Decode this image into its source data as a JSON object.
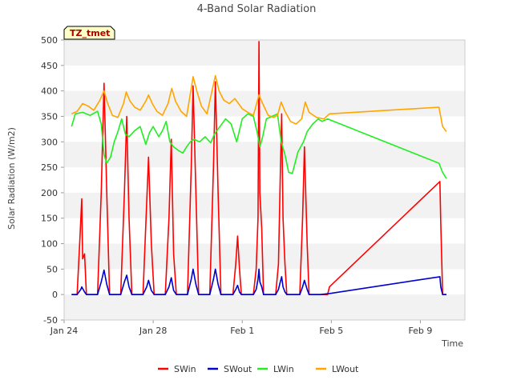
{
  "chart_data": {
    "type": "line",
    "title": "4-Band Solar Radiation",
    "xlabel": "Time",
    "ylabel": "Solar Radiation (W/m2)",
    "badge": "TZ_tmet",
    "ylim": [
      -50,
      500
    ],
    "yticks": [
      -50,
      0,
      50,
      100,
      150,
      200,
      250,
      300,
      350,
      400,
      450,
      500
    ],
    "xlim": [
      "2025-01-24",
      "2025-02-11"
    ],
    "xticks": [
      {
        "value": "2025-01-24",
        "label": "Jan 24"
      },
      {
        "value": "2025-01-28",
        "label": "Jan 28"
      },
      {
        "value": "2025-02-01",
        "label": "Feb 1"
      },
      {
        "value": "2025-02-05",
        "label": "Feb 5"
      },
      {
        "value": "2025-02-09",
        "label": "Feb 9"
      }
    ],
    "grid": "horizontal bands",
    "legend_position": "bottom",
    "series": [
      {
        "name": "SWin",
        "color": "#ff0000",
        "points": [
          [
            "2025-01-24T08:00",
            0
          ],
          [
            "2025-01-24T14:00",
            0
          ],
          [
            "2025-01-24T17:00",
            110
          ],
          [
            "2025-01-24T19:00",
            188
          ],
          [
            "2025-01-24T20:00",
            70
          ],
          [
            "2025-01-24T22:00",
            80
          ],
          [
            "2025-01-25T00:00",
            0
          ],
          [
            "2025-01-25T12:00",
            0
          ],
          [
            "2025-01-25T16:00",
            200
          ],
          [
            "2025-01-25T19:00",
            415
          ],
          [
            "2025-01-25T22:00",
            200
          ],
          [
            "2025-01-26T01:00",
            0
          ],
          [
            "2025-01-26T13:00",
            0
          ],
          [
            "2025-01-26T17:00",
            200
          ],
          [
            "2025-01-26T19:30",
            350
          ],
          [
            "2025-01-26T22:00",
            150
          ],
          [
            "2025-01-27T01:00",
            0
          ],
          [
            "2025-01-27T13:00",
            0
          ],
          [
            "2025-01-27T17:00",
            180
          ],
          [
            "2025-01-27T19:00",
            270
          ],
          [
            "2025-01-27T22:00",
            100
          ],
          [
            "2025-01-28T01:00",
            0
          ],
          [
            "2025-01-28T13:00",
            0
          ],
          [
            "2025-01-28T17:00",
            150
          ],
          [
            "2025-01-28T19:30",
            305
          ],
          [
            "2025-01-28T22:00",
            80
          ],
          [
            "2025-01-29T01:00",
            0
          ],
          [
            "2025-01-29T13:00",
            0
          ],
          [
            "2025-01-29T17:00",
            250
          ],
          [
            "2025-01-29T19:00",
            410
          ],
          [
            "2025-01-29T22:00",
            200
          ],
          [
            "2025-01-30T01:00",
            0
          ],
          [
            "2025-01-30T13:00",
            0
          ],
          [
            "2025-01-30T17:00",
            250
          ],
          [
            "2025-01-30T19:00",
            418
          ],
          [
            "2025-01-30T22:00",
            200
          ],
          [
            "2025-01-31T01:00",
            0
          ],
          [
            "2025-01-31T14:00",
            0
          ],
          [
            "2025-01-31T17:00",
            60
          ],
          [
            "2025-01-31T19:00",
            115
          ],
          [
            "2025-01-31T21:00",
            50
          ],
          [
            "2025-01-31T23:00",
            0
          ],
          [
            "2025-02-01T12:00",
            0
          ],
          [
            "2025-02-01T15:00",
            50
          ],
          [
            "2025-02-01T17:00",
            150
          ],
          [
            "2025-02-01T18:00",
            497
          ],
          [
            "2025-02-01T19:00",
            200
          ],
          [
            "2025-02-01T21:00",
            130
          ],
          [
            "2025-02-01T23:00",
            0
          ],
          [
            "2025-02-02T12:00",
            0
          ],
          [
            "2025-02-02T15:00",
            60
          ],
          [
            "2025-02-02T17:00",
            235
          ],
          [
            "2025-02-02T18:30",
            355
          ],
          [
            "2025-02-02T20:00",
            150
          ],
          [
            "2025-02-02T22:00",
            60
          ],
          [
            "2025-02-03T00:00",
            0
          ],
          [
            "2025-02-03T14:00",
            0
          ],
          [
            "2025-02-03T17:00",
            150
          ],
          [
            "2025-02-03T19:00",
            290
          ],
          [
            "2025-02-03T22:00",
            100
          ],
          [
            "2025-02-04T00:00",
            0
          ],
          [
            "2025-02-04T12:00",
            0
          ],
          [
            "2025-02-04T20:00",
            0
          ],
          [
            "2025-02-04T22:00",
            15
          ],
          [
            "2025-02-09T21:00",
            222
          ],
          [
            "2025-02-09T22:00",
            140
          ],
          [
            "2025-02-10T00:00",
            0
          ],
          [
            "2025-02-10T04:00",
            0
          ]
        ]
      },
      {
        "name": "SWout",
        "color": "#0000cc",
        "points": [
          [
            "2025-01-24T08:00",
            0
          ],
          [
            "2025-01-24T14:00",
            0
          ],
          [
            "2025-01-24T18:00",
            10
          ],
          [
            "2025-01-24T19:00",
            15
          ],
          [
            "2025-01-24T22:00",
            5
          ],
          [
            "2025-01-25T00:00",
            0
          ],
          [
            "2025-01-25T12:00",
            0
          ],
          [
            "2025-01-25T16:00",
            25
          ],
          [
            "2025-01-25T19:00",
            48
          ],
          [
            "2025-01-25T22:00",
            20
          ],
          [
            "2025-01-26T01:00",
            0
          ],
          [
            "2025-01-26T13:00",
            0
          ],
          [
            "2025-01-26T17:00",
            25
          ],
          [
            "2025-01-26T19:30",
            38
          ],
          [
            "2025-01-26T22:00",
            15
          ],
          [
            "2025-01-27T01:00",
            0
          ],
          [
            "2025-01-27T13:00",
            0
          ],
          [
            "2025-01-27T17:00",
            15
          ],
          [
            "2025-01-27T19:00",
            28
          ],
          [
            "2025-01-27T22:00",
            8
          ],
          [
            "2025-01-28T01:00",
            0
          ],
          [
            "2025-01-28T13:00",
            0
          ],
          [
            "2025-01-28T17:00",
            15
          ],
          [
            "2025-01-28T19:30",
            33
          ],
          [
            "2025-01-28T22:00",
            8
          ],
          [
            "2025-01-29T01:00",
            0
          ],
          [
            "2025-01-29T13:00",
            0
          ],
          [
            "2025-01-29T17:00",
            30
          ],
          [
            "2025-01-29T19:00",
            50
          ],
          [
            "2025-01-29T22:00",
            20
          ],
          [
            "2025-01-30T01:00",
            0
          ],
          [
            "2025-01-30T13:00",
            0
          ],
          [
            "2025-01-30T17:00",
            30
          ],
          [
            "2025-01-30T19:00",
            50
          ],
          [
            "2025-01-30T22:00",
            20
          ],
          [
            "2025-01-31T01:00",
            0
          ],
          [
            "2025-01-31T14:00",
            0
          ],
          [
            "2025-01-31T17:00",
            10
          ],
          [
            "2025-01-31T19:00",
            18
          ],
          [
            "2025-01-31T21:00",
            5
          ],
          [
            "2025-01-31T23:00",
            0
          ],
          [
            "2025-02-01T12:00",
            0
          ],
          [
            "2025-02-01T15:00",
            10
          ],
          [
            "2025-02-01T17:00",
            30
          ],
          [
            "2025-02-01T18:00",
            50
          ],
          [
            "2025-02-01T19:00",
            25
          ],
          [
            "2025-02-01T21:00",
            15
          ],
          [
            "2025-02-01T23:00",
            0
          ],
          [
            "2025-02-02T12:00",
            0
          ],
          [
            "2025-02-02T15:00",
            10
          ],
          [
            "2025-02-02T17:00",
            25
          ],
          [
            "2025-02-02T18:30",
            35
          ],
          [
            "2025-02-02T20:00",
            15
          ],
          [
            "2025-02-02T22:00",
            5
          ],
          [
            "2025-02-03T00:00",
            0
          ],
          [
            "2025-02-03T14:00",
            0
          ],
          [
            "2025-02-03T17:00",
            15
          ],
          [
            "2025-02-03T19:00",
            28
          ],
          [
            "2025-02-03T22:00",
            10
          ],
          [
            "2025-02-04T00:00",
            0
          ],
          [
            "2025-02-04T12:00",
            0
          ],
          [
            "2025-02-04T22:00",
            2
          ],
          [
            "2025-02-09T21:00",
            35
          ],
          [
            "2025-02-09T22:00",
            15
          ],
          [
            "2025-02-10T00:00",
            0
          ],
          [
            "2025-02-10T04:00",
            0
          ]
        ]
      },
      {
        "name": "LWin",
        "color": "#22ee22",
        "points": [
          [
            "2025-01-24T08:00",
            330
          ],
          [
            "2025-01-24T12:00",
            355
          ],
          [
            "2025-01-24T20:00",
            358
          ],
          [
            "2025-01-25T04:00",
            352
          ],
          [
            "2025-01-25T12:00",
            360
          ],
          [
            "2025-01-25T16:00",
            335
          ],
          [
            "2025-01-25T19:00",
            275
          ],
          [
            "2025-01-25T22:00",
            258
          ],
          [
            "2025-01-26T02:00",
            270
          ],
          [
            "2025-01-26T06:00",
            300
          ],
          [
            "2025-01-26T10:00",
            320
          ],
          [
            "2025-01-26T14:00",
            345
          ],
          [
            "2025-01-26T18:00",
            315
          ],
          [
            "2025-01-26T22:00",
            310
          ],
          [
            "2025-01-27T04:00",
            322
          ],
          [
            "2025-01-27T10:00",
            330
          ],
          [
            "2025-01-27T16:00",
            295
          ],
          [
            "2025-01-27T20:00",
            318
          ],
          [
            "2025-01-28T00:00",
            330
          ],
          [
            "2025-01-28T06:00",
            310
          ],
          [
            "2025-01-28T10:00",
            322
          ],
          [
            "2025-01-28T14:00",
            340
          ],
          [
            "2025-01-28T18:00",
            300
          ],
          [
            "2025-01-28T22:00",
            290
          ],
          [
            "2025-01-29T04:00",
            282
          ],
          [
            "2025-01-29T08:00",
            278
          ],
          [
            "2025-01-29T12:00",
            290
          ],
          [
            "2025-01-29T16:00",
            300
          ],
          [
            "2025-01-29T20:00",
            305
          ],
          [
            "2025-01-30T02:00",
            300
          ],
          [
            "2025-01-30T08:00",
            310
          ],
          [
            "2025-01-30T14:00",
            298
          ],
          [
            "2025-01-30T18:00",
            315
          ],
          [
            "2025-01-31T00:00",
            330
          ],
          [
            "2025-01-31T06:00",
            345
          ],
          [
            "2025-01-31T12:00",
            335
          ],
          [
            "2025-01-31T18:00",
            300
          ],
          [
            "2025-02-01T00:00",
            345
          ],
          [
            "2025-02-01T06:00",
            355
          ],
          [
            "2025-02-01T12:00",
            350
          ],
          [
            "2025-02-01T16:00",
            320
          ],
          [
            "2025-02-01T19:00",
            290
          ],
          [
            "2025-02-01T22:00",
            310
          ],
          [
            "2025-02-02T02:00",
            345
          ],
          [
            "2025-02-02T08:00",
            350
          ],
          [
            "2025-02-02T14:00",
            355
          ],
          [
            "2025-02-02T18:00",
            300
          ],
          [
            "2025-02-02T22:00",
            275
          ],
          [
            "2025-02-03T02:00",
            240
          ],
          [
            "2025-02-03T06:00",
            238
          ],
          [
            "2025-02-03T12:00",
            280
          ],
          [
            "2025-02-03T18:00",
            300
          ],
          [
            "2025-02-03T22:00",
            320
          ],
          [
            "2025-02-04T04:00",
            335
          ],
          [
            "2025-02-04T10:00",
            345
          ],
          [
            "2025-02-04T14:00",
            340
          ],
          [
            "2025-02-04T20:00",
            345
          ],
          [
            "2025-02-09T20:00",
            258
          ],
          [
            "2025-02-10T00:00",
            240
          ],
          [
            "2025-02-10T04:00",
            228
          ]
        ]
      },
      {
        "name": "LWout",
        "color": "#ffa500",
        "points": [
          [
            "2025-01-24T08:00",
            355
          ],
          [
            "2025-01-24T14:00",
            360
          ],
          [
            "2025-01-24T20:00",
            375
          ],
          [
            "2025-01-25T02:00",
            370
          ],
          [
            "2025-01-25T08:00",
            362
          ],
          [
            "2025-01-25T14:00",
            380
          ],
          [
            "2025-01-25T19:00",
            400
          ],
          [
            "2025-01-25T23:00",
            375
          ],
          [
            "2025-01-26T04:00",
            352
          ],
          [
            "2025-01-26T10:00",
            348
          ],
          [
            "2025-01-26T16:00",
            375
          ],
          [
            "2025-01-26T19:00",
            398
          ],
          [
            "2025-01-26T23:00",
            380
          ],
          [
            "2025-01-27T04:00",
            368
          ],
          [
            "2025-01-27T10:00",
            362
          ],
          [
            "2025-01-27T16:00",
            380
          ],
          [
            "2025-01-27T19:00",
            392
          ],
          [
            "2025-01-27T23:00",
            375
          ],
          [
            "2025-01-28T04:00",
            360
          ],
          [
            "2025-01-28T10:00",
            352
          ],
          [
            "2025-01-28T16:00",
            375
          ],
          [
            "2025-01-28T20:00",
            405
          ],
          [
            "2025-01-29T00:00",
            380
          ],
          [
            "2025-01-29T06:00",
            360
          ],
          [
            "2025-01-29T12:00",
            350
          ],
          [
            "2025-01-29T17:00",
            405
          ],
          [
            "2025-01-29T19:00",
            428
          ],
          [
            "2025-01-29T23:00",
            400
          ],
          [
            "2025-01-30T04:00",
            370
          ],
          [
            "2025-01-30T10:00",
            355
          ],
          [
            "2025-01-30T16:00",
            405
          ],
          [
            "2025-01-30T19:00",
            430
          ],
          [
            "2025-01-30T23:00",
            400
          ],
          [
            "2025-01-31T04:00",
            382
          ],
          [
            "2025-01-31T10:00",
            375
          ],
          [
            "2025-01-31T16:00",
            385
          ],
          [
            "2025-01-31T20:00",
            375
          ],
          [
            "2025-02-01T00:00",
            365
          ],
          [
            "2025-02-01T06:00",
            358
          ],
          [
            "2025-02-01T12:00",
            352
          ],
          [
            "2025-02-01T18:00",
            392
          ],
          [
            "2025-02-01T22:00",
            375
          ],
          [
            "2025-02-02T04:00",
            352
          ],
          [
            "2025-02-02T10:00",
            348
          ],
          [
            "2025-02-02T14:00",
            352
          ],
          [
            "2025-02-02T18:00",
            378
          ],
          [
            "2025-02-02T22:00",
            360
          ],
          [
            "2025-02-03T04:00",
            340
          ],
          [
            "2025-02-03T10:00",
            335
          ],
          [
            "2025-02-03T16:00",
            345
          ],
          [
            "2025-02-03T20:00",
            378
          ],
          [
            "2025-02-04T00:00",
            358
          ],
          [
            "2025-02-04T08:00",
            348
          ],
          [
            "2025-02-04T16:00",
            345
          ],
          [
            "2025-02-04T22:00",
            355
          ],
          [
            "2025-02-09T20:00",
            368
          ],
          [
            "2025-02-10T00:00",
            330
          ],
          [
            "2025-02-10T04:00",
            320
          ]
        ]
      }
    ]
  }
}
